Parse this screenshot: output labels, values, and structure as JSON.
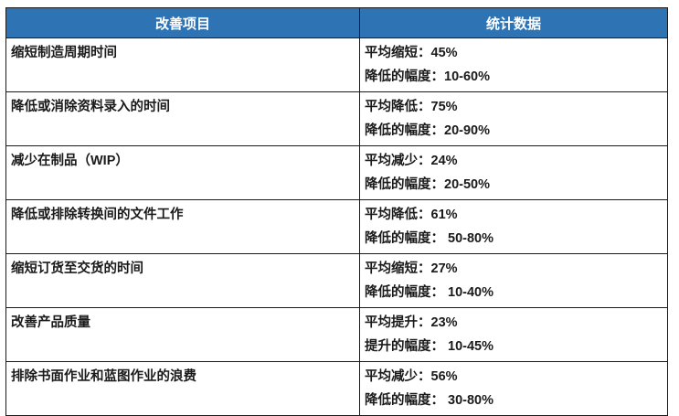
{
  "table": {
    "headers": {
      "item": "改善项目",
      "stats": "统计数据"
    },
    "rows": [
      {
        "item": "缩短制造周期时间",
        "stat_line1": "平均缩短：45%",
        "stat_line2": "降低的幅度：10-60%"
      },
      {
        "item": "降低或消除资料录入的时间",
        "stat_line1": "平均降低：75%",
        "stat_line2": "降低的幅度：20-90%"
      },
      {
        "item": "减少在制品（WIP）",
        "stat_line1": "平均减少：24%",
        "stat_line2": "降低的幅度：20-50%"
      },
      {
        "item": "降低或排除转换间的文件工作",
        "stat_line1": "平均降低：61%",
        "stat_line2": "降低的幅度： 50-80%"
      },
      {
        "item": "缩短订货至交货的时间",
        "stat_line1": "平均缩短：27%",
        "stat_line2": "降低的幅度： 10-40%"
      },
      {
        "item": "改善产品质量",
        "stat_line1": "平均提升：23%",
        "stat_line2": "提升的幅度： 10-45%"
      },
      {
        "item": "排除书面作业和蓝图作业的浪费",
        "stat_line1": "平均减少：56%",
        "stat_line2": "降低的幅度： 30-80%"
      }
    ],
    "colors": {
      "header_bg": "#2E74B5",
      "header_text": "#FFFFFF",
      "body_text": "#1A1A1A",
      "border": "#1A1A1A"
    }
  }
}
